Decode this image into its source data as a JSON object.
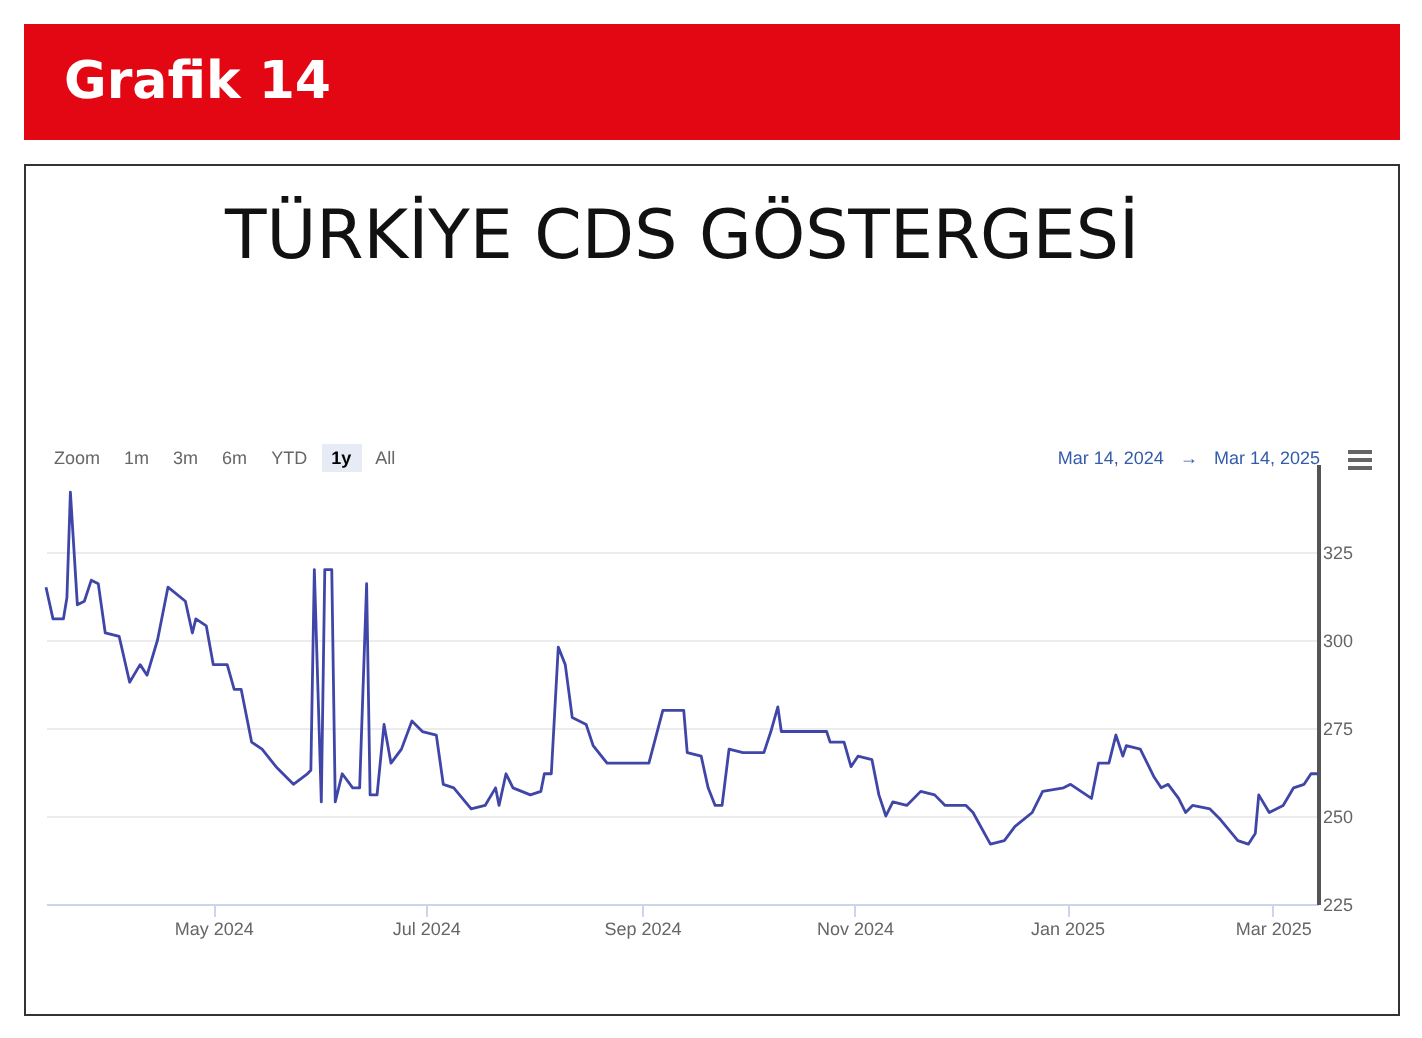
{
  "chart_data": {
    "type": "line",
    "title": "TÜRKİYE CDS GÖSTERGESİ",
    "annotations": [
      "Grafik 14",
      "Zoom",
      "1m",
      "3m",
      "6m",
      "YTD",
      "1y",
      "All",
      "Mar 14, 2024",
      "→",
      "Mar 14, 2025"
    ],
    "x": [
      "2024-03-14",
      "2024-03-16",
      "2024-03-19",
      "2024-03-20",
      "2024-03-21",
      "2024-03-23",
      "2024-03-25",
      "2024-03-27",
      "2024-03-29",
      "2024-03-31",
      "2024-04-04",
      "2024-04-07",
      "2024-04-10",
      "2024-04-12",
      "2024-04-15",
      "2024-04-18",
      "2024-04-23",
      "2024-04-25",
      "2024-04-26",
      "2024-04-29",
      "2024-05-01",
      "2024-05-05",
      "2024-05-07",
      "2024-05-09",
      "2024-05-12",
      "2024-05-15",
      "2024-05-19",
      "2024-05-24",
      "2024-05-28",
      "2024-05-29",
      "2024-05-30",
      "2024-06-01",
      "2024-06-02",
      "2024-06-04",
      "2024-06-05",
      "2024-06-07",
      "2024-06-10",
      "2024-06-12",
      "2024-06-14",
      "2024-06-15",
      "2024-06-17",
      "2024-06-19",
      "2024-06-21",
      "2024-06-24",
      "2024-06-27",
      "2024-06-30",
      "2024-07-04",
      "2024-07-06",
      "2024-07-09",
      "2024-07-14",
      "2024-07-18",
      "2024-07-21",
      "2024-07-22",
      "2024-07-24",
      "2024-07-26",
      "2024-07-31",
      "2024-08-03",
      "2024-08-04",
      "2024-08-06",
      "2024-08-08",
      "2024-08-10",
      "2024-08-12",
      "2024-08-16",
      "2024-08-18",
      "2024-08-22",
      "2024-09-03",
      "2024-09-07",
      "2024-09-13",
      "2024-09-14",
      "2024-09-18",
      "2024-09-20",
      "2024-09-22",
      "2024-09-24",
      "2024-09-26",
      "2024-09-30",
      "2024-10-06",
      "2024-10-08",
      "2024-10-10",
      "2024-10-11",
      "2024-10-24",
      "2024-10-25",
      "2024-10-29",
      "2024-10-31",
      "2024-11-02",
      "2024-11-06",
      "2024-11-08",
      "2024-11-10",
      "2024-11-12",
      "2024-11-16",
      "2024-11-20",
      "2024-11-24",
      "2024-11-27",
      "2024-12-03",
      "2024-12-05",
      "2024-12-10",
      "2024-12-14",
      "2024-12-17",
      "2024-12-22",
      "2024-12-25",
      "2024-12-31",
      "2025-01-02",
      "2025-01-05",
      "2025-01-08",
      "2025-01-10",
      "2025-01-13",
      "2025-01-15",
      "2025-01-17",
      "2025-01-18",
      "2025-01-22",
      "2025-01-26",
      "2025-01-28",
      "2025-01-30",
      "2025-02-02",
      "2025-02-04",
      "2025-02-06",
      "2025-02-11",
      "2025-02-14",
      "2025-02-19",
      "2025-02-22",
      "2025-02-24",
      "2025-02-25",
      "2025-02-28",
      "2025-03-04",
      "2025-03-07",
      "2025-03-10",
      "2025-03-12",
      "2025-03-14"
    ],
    "series": [
      {
        "color": "#3f46a8",
        "values": [
          315,
          306,
          306,
          312,
          342,
          310,
          311,
          317,
          316,
          302,
          301,
          288,
          293,
          290,
          300,
          315,
          311,
          302,
          306,
          304,
          293,
          293,
          286,
          286,
          271,
          269,
          264,
          259,
          262,
          263,
          320,
          254,
          320,
          320,
          254,
          262,
          258,
          258,
          316,
          256,
          256,
          276,
          265,
          269,
          277,
          274,
          273,
          259,
          258,
          252,
          253,
          258,
          253,
          262,
          258,
          256,
          257,
          262,
          262,
          298,
          293,
          278,
          276,
          270,
          265,
          265,
          280,
          280,
          268,
          267,
          258,
          253,
          253,
          269,
          268,
          268,
          274,
          281,
          274,
          274,
          271,
          271,
          264,
          267,
          266,
          256,
          250,
          254,
          253,
          257,
          256,
          253,
          253,
          251,
          242,
          243,
          247,
          251,
          257,
          258,
          259,
          257,
          255,
          265,
          265,
          273,
          267,
          270,
          269,
          261,
          258,
          259,
          255,
          251,
          253,
          252,
          249,
          243,
          242,
          245,
          256,
          251,
          253,
          258,
          259,
          262,
          262
        ]
      }
    ],
    "xlim": [
      "2024-03-14",
      "2025-03-14"
    ],
    "xticks": [
      {
        "value": "2024-05-01",
        "label": "May 2024"
      },
      {
        "value": "2024-07-01",
        "label": "Jul 2024"
      },
      {
        "value": "2024-09-01",
        "label": "Sep 2024"
      },
      {
        "value": "2024-11-01",
        "label": "Nov 2024"
      },
      {
        "value": "2025-01-01",
        "label": "Jan 2025"
      },
      {
        "value": "2025-03-01",
        "label": "Mar 2025"
      }
    ],
    "ylim": [
      225,
      350
    ],
    "yticks": [
      225,
      250,
      275,
      300,
      325
    ],
    "grid": "y",
    "legend": false,
    "marker": "none",
    "line_style": "solid"
  }
}
